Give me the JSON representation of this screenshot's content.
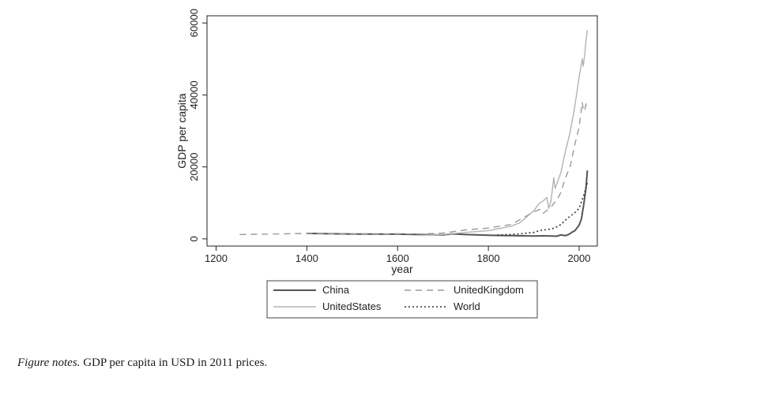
{
  "chart_data": {
    "type": "line",
    "xlabel": "year",
    "ylabel": "GDP per capita",
    "xlim": [
      1180,
      2040
    ],
    "ylim": [
      -2000,
      62000
    ],
    "xticks": [
      1200,
      1400,
      1600,
      1800,
      2000
    ],
    "yticks": [
      0,
      20000,
      40000,
      60000
    ],
    "grid": false,
    "legend_position": "bottom",
    "series": [
      {
        "name": "China",
        "color": "#555555",
        "dash": "",
        "width": 2,
        "x": [
          1400,
          1500,
          1600,
          1700,
          1720,
          1750,
          1800,
          1850,
          1900,
          1920,
          1940,
          1950,
          1960,
          1970,
          1978,
          1985,
          1990,
          1995,
          2000,
          2005,
          2010,
          2015,
          2018
        ],
        "y": [
          1500,
          1350,
          1300,
          1100,
          1400,
          1200,
          1000,
          900,
          800,
          850,
          800,
          750,
          1100,
          900,
          1300,
          1900,
          2200,
          3000,
          3800,
          5500,
          9500,
          14000,
          19000
        ]
      },
      {
        "name": "UnitedKingdom",
        "color": "#9a9a9a",
        "dash": "8,6",
        "width": 1.4,
        "x": [
          1252,
          1300,
          1350,
          1400,
          1450,
          1500,
          1550,
          1600,
          1650,
          1700,
          1750,
          1800,
          1850,
          1900,
          1913,
          1920,
          1938,
          1945,
          1950,
          1960,
          1970,
          1980,
          1990,
          2000,
          2007,
          2009,
          2012,
          2016,
          2018
        ],
        "y": [
          1200,
          1300,
          1400,
          1500,
          1400,
          1350,
          1300,
          1400,
          1350,
          1600,
          2500,
          3000,
          4000,
          7500,
          8200,
          7000,
          8800,
          10000,
          10500,
          13000,
          17000,
          20000,
          26000,
          31000,
          38000,
          36000,
          35500,
          38000,
          37000
        ]
      },
      {
        "name": "UnitedStates",
        "color": "#b3b3b3",
        "dash": "",
        "width": 1.4,
        "x": [
          1650,
          1700,
          1750,
          1800,
          1850,
          1870,
          1900,
          1913,
          1920,
          1929,
          1933,
          1938,
          1944,
          1947,
          1950,
          1960,
          1970,
          1980,
          1990,
          2000,
          2007,
          2009,
          2012,
          2016,
          2018
        ],
        "y": [
          1000,
          1200,
          1800,
          2300,
          3500,
          4500,
          7800,
          10000,
          10500,
          11500,
          8500,
          10500,
          17000,
          14000,
          15000,
          18500,
          24500,
          29500,
          36500,
          45000,
          50000,
          48000,
          51000,
          56000,
          58000
        ]
      },
      {
        "name": "World",
        "color": "#333333",
        "dash": "2,3",
        "width": 1.6,
        "x": [
          1820,
          1850,
          1870,
          1900,
          1913,
          1940,
          1950,
          1960,
          1970,
          1980,
          1990,
          2000,
          2010,
          2018
        ],
        "y": [
          1100,
          1200,
          1400,
          1800,
          2300,
          2800,
          3300,
          4000,
          5200,
          6300,
          7200,
          8500,
          12000,
          15500
        ]
      }
    ],
    "legend": {
      "order": [
        "China",
        "UnitedKingdom",
        "UnitedStates",
        "World"
      ]
    }
  },
  "notes": {
    "label": "Figure notes.",
    "text": " GDP per capita in USD in 2011 prices."
  }
}
